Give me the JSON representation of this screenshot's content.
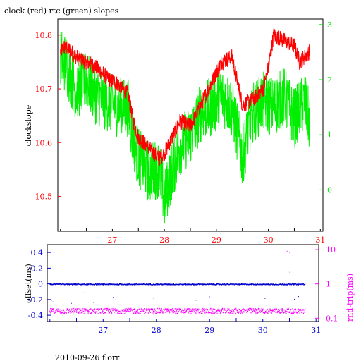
{
  "title": "clock (red) rtc (green) slopes",
  "footer": "2010-09-26 florr",
  "colors": {
    "red": "#ff0000",
    "green": "#00ee00",
    "blue": "#0000cc",
    "magenta": "#ff00ff",
    "axis": "#000000"
  },
  "chart_data": [
    {
      "type": "line",
      "title": "clock (red) rtc (green) slopes",
      "ylabel": "clockslope",
      "xlim": [
        26.45,
        31.55
      ],
      "ylim": [
        10.435,
        10.83
      ],
      "y2lim": [
        -0.75,
        3.1
      ],
      "x_ticks": [
        27,
        28,
        29,
        30,
        31
      ],
      "y_ticks": [
        10.5,
        10.6,
        10.7,
        10.8
      ],
      "y_tick_labels": [
        "10.5",
        "10.6",
        "10.7",
        "10.8"
      ],
      "y2_ticks": [
        0,
        1,
        2,
        3
      ],
      "y2_tick_labels": [
        "0",
        "1",
        "2",
        "3"
      ],
      "x_tick_labels": [
        "27",
        "28",
        "29",
        "30",
        "31"
      ],
      "series": [
        {
          "color": "red",
          "axis": "left",
          "x": [
            26.5,
            26.6,
            26.8,
            27.0,
            27.2,
            27.4,
            27.6,
            27.8,
            27.9,
            28.0,
            28.1,
            28.2,
            28.3,
            28.4,
            28.5,
            28.6,
            28.8,
            29.0,
            29.2,
            29.4,
            29.6,
            29.8,
            30.0,
            30.2,
            30.4,
            30.5,
            30.6,
            30.8,
            31.0,
            31.1,
            31.3
          ],
          "y": [
            10.77,
            10.78,
            10.76,
            10.75,
            10.74,
            10.72,
            10.71,
            10.69,
            10.64,
            10.61,
            10.6,
            10.59,
            10.58,
            10.57,
            10.58,
            10.6,
            10.64,
            10.63,
            10.67,
            10.71,
            10.75,
            10.76,
            10.67,
            10.68,
            10.7,
            10.74,
            10.8,
            10.79,
            10.78,
            10.75,
            10.77
          ]
        },
        {
          "color": "green",
          "axis": "right",
          "x": [
            26.5,
            26.6,
            26.8,
            27.0,
            27.2,
            27.4,
            27.6,
            27.8,
            27.9,
            28.0,
            28.2,
            28.4,
            28.5,
            28.6,
            28.8,
            29.0,
            29.2,
            29.4,
            29.6,
            29.8,
            30.0,
            30.2,
            30.4,
            30.6,
            30.8,
            31.0,
            31.2,
            31.3
          ],
          "y": [
            2.4,
            2.3,
            1.8,
            2.0,
            1.7,
            1.6,
            1.5,
            1.5,
            0.9,
            0.6,
            0.3,
            0.4,
            -0.2,
            0.2,
            0.8,
            1.0,
            1.4,
            1.5,
            1.7,
            1.5,
            0.6,
            1.4,
            1.6,
            1.5,
            1.7,
            1.3,
            1.6,
            1.2
          ]
        }
      ]
    },
    {
      "type": "scatter",
      "ylabel": "offset(ms)",
      "y2label": "rnd-trip(ms)",
      "xlim": [
        26.45,
        31.55
      ],
      "ylim": [
        -0.48,
        0.5
      ],
      "y2_scale": "log",
      "y2lim": [
        0.08,
        14
      ],
      "x_ticks": [
        27,
        28,
        29,
        30,
        31
      ],
      "x_tick_labels": [
        "27",
        "28",
        "29",
        "30",
        "31"
      ],
      "y_ticks": [
        -0.4,
        -0.2,
        0,
        0.2,
        0.4
      ],
      "y_tick_labels": [
        "-0.4",
        "-0.2",
        "0",
        "0.2",
        "0.4"
      ],
      "y2_ticks": [
        0.1,
        1,
        10
      ],
      "y2_tick_labels": [
        "0.1",
        "1",
        "10"
      ],
      "series": [
        {
          "color": "blue",
          "axis": "left",
          "x": [
            26.5,
            31.3
          ],
          "y": [
            0.0,
            0.0
          ]
        },
        {
          "color": "magenta",
          "axis": "right",
          "x": [
            26.5,
            31.3
          ],
          "y": [
            0.17,
            0.17
          ]
        }
      ]
    }
  ]
}
